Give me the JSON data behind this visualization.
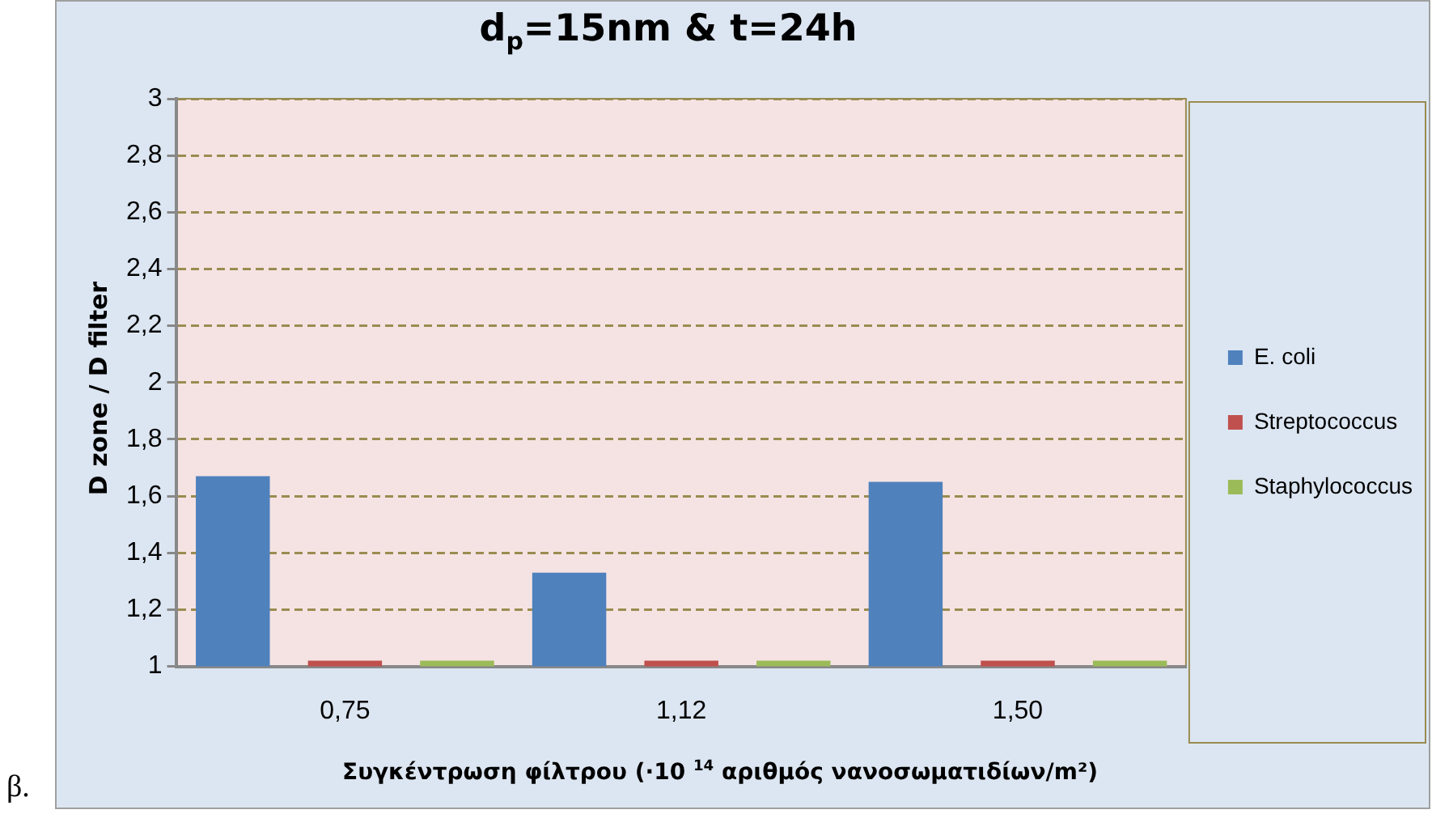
{
  "chart_data": {
    "type": "bar",
    "title": "d$_{p}$=15nm & t=24h",
    "xlabel": "Συγκέντρωση φίλτρου (·10 $^{14}$ αριθμός νανοσωματιδίων/m²)",
    "ylabel": "D zone / D filter",
    "annotations": [
      "β."
    ],
    "categories": [
      "0,75",
      "1,12",
      "1,50"
    ],
    "series": [
      {
        "name": "E. coli",
        "color": "#4f81bd",
        "values": [
          1.67,
          1.33,
          1.65
        ]
      },
      {
        "name": "Streptococcus",
        "color": "#c0504d",
        "values": [
          1.02,
          1.02,
          1.02
        ]
      },
      {
        "name": "Staphylococcus",
        "color": "#9bbb59",
        "values": [
          1.02,
          1.02,
          1.02
        ]
      }
    ],
    "ylim": [
      1,
      3
    ],
    "yticks": [
      1,
      {
        "value": 1.2,
        "label": "1,2"
      },
      {
        "value": 1.4,
        "label": "1,4"
      },
      {
        "value": 1.6,
        "label": "1,6"
      },
      {
        "value": 1.8,
        "label": "1,8"
      },
      2,
      {
        "value": 2.2,
        "label": "2,2"
      },
      {
        "value": 2.4,
        "label": "2,4"
      },
      {
        "value": 2.6,
        "label": "2,6"
      },
      {
        "value": 2.8,
        "label": "2,8"
      },
      3
    ],
    "grid": "y",
    "legend": "right"
  }
}
